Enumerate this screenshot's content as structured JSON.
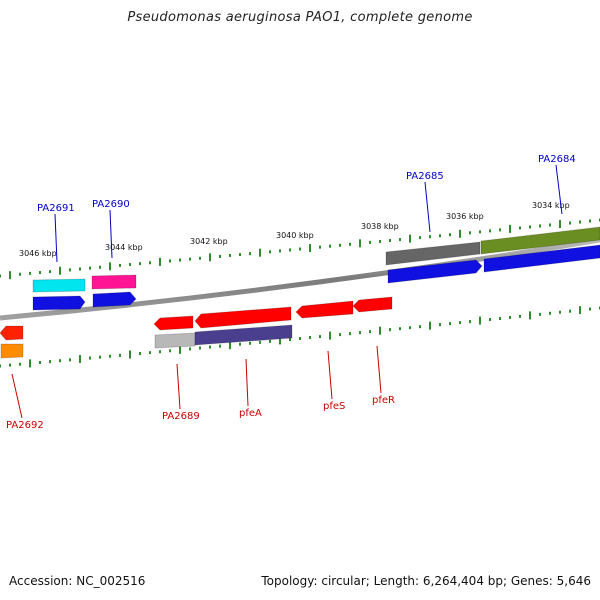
{
  "title": "Pseudomonas aeruginosa PAO1, complete genome",
  "footer": {
    "accession": "Accession: NC_002516",
    "summary": "Topology: circular; Length: 6,264,404 bp; Genes: 5,646"
  },
  "colors": {
    "backbone": "#8a8a8a",
    "tick": "#2e8b2e",
    "top_label": "#0000cc",
    "bottom_label": "#cc0000"
  },
  "ticks": [
    {
      "label": "3046 kbp"
    },
    {
      "label": "3044 kbp"
    },
    {
      "label": "3042 kbp"
    },
    {
      "label": "3040 kbp"
    },
    {
      "label": "3038 kbp"
    },
    {
      "label": "3036 kbp"
    },
    {
      "label": "3034 kbp"
    }
  ],
  "genes_top": [
    {
      "label": "PA2691",
      "color": "#00e5ee",
      "strand": "reverse"
    },
    {
      "label": "PA2690",
      "color": "#ff1493",
      "strand": "forward"
    },
    {
      "label": "PA2685",
      "color": "#666666",
      "strand": "forward"
    },
    {
      "label": "PA2684",
      "color": "#6b8e23",
      "strand": "forward"
    }
  ],
  "genes_bottom": [
    {
      "label": "PA2692",
      "color": "#ff2200",
      "strand": "reverse"
    },
    {
      "label": "PA2689",
      "color": "#ff0000",
      "strand": "reverse"
    },
    {
      "label": "pfeA",
      "color": "#ff0000",
      "strand": "reverse"
    },
    {
      "label": "pfeS",
      "color": "#ff0000",
      "strand": "reverse"
    },
    {
      "label": "pfeR",
      "color": "#ff0000",
      "strand": "reverse"
    }
  ],
  "cds_colors": {
    "top_blue": "#1010e0",
    "bottom_grey": "#b8b8b8",
    "bottom_purple": "#4a3f8f",
    "bottom_orange": "#ff8c00"
  }
}
